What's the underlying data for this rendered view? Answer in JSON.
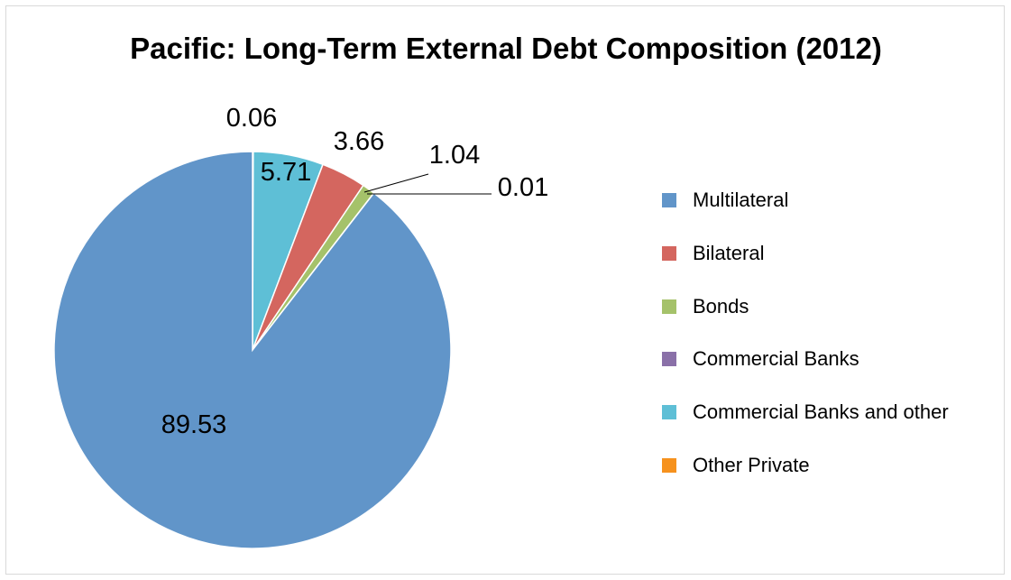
{
  "chart_data": {
    "type": "pie",
    "title": "Pacific: Long-Term External Debt Composition (2012)",
    "legend_position": "right",
    "series": [
      {
        "name": "Multilateral",
        "value": 89.53,
        "label": "89.53",
        "color": "#6195c9"
      },
      {
        "name": "Bilateral",
        "value": 3.66,
        "label": "3.66",
        "color": "#d4665f"
      },
      {
        "name": "Bonds",
        "value": 1.04,
        "label": "1.04",
        "color": "#a5c26a"
      },
      {
        "name": "Commercial Banks",
        "value": 0.01,
        "label": "0.01",
        "color": "#8a70a8"
      },
      {
        "name": "Commercial Banks and other",
        "value": 5.71,
        "label": "5.71",
        "color": "#5ebfd6"
      },
      {
        "name": "Other Private",
        "value": 0.06,
        "label": "0.06",
        "color": "#f6921e"
      }
    ]
  }
}
